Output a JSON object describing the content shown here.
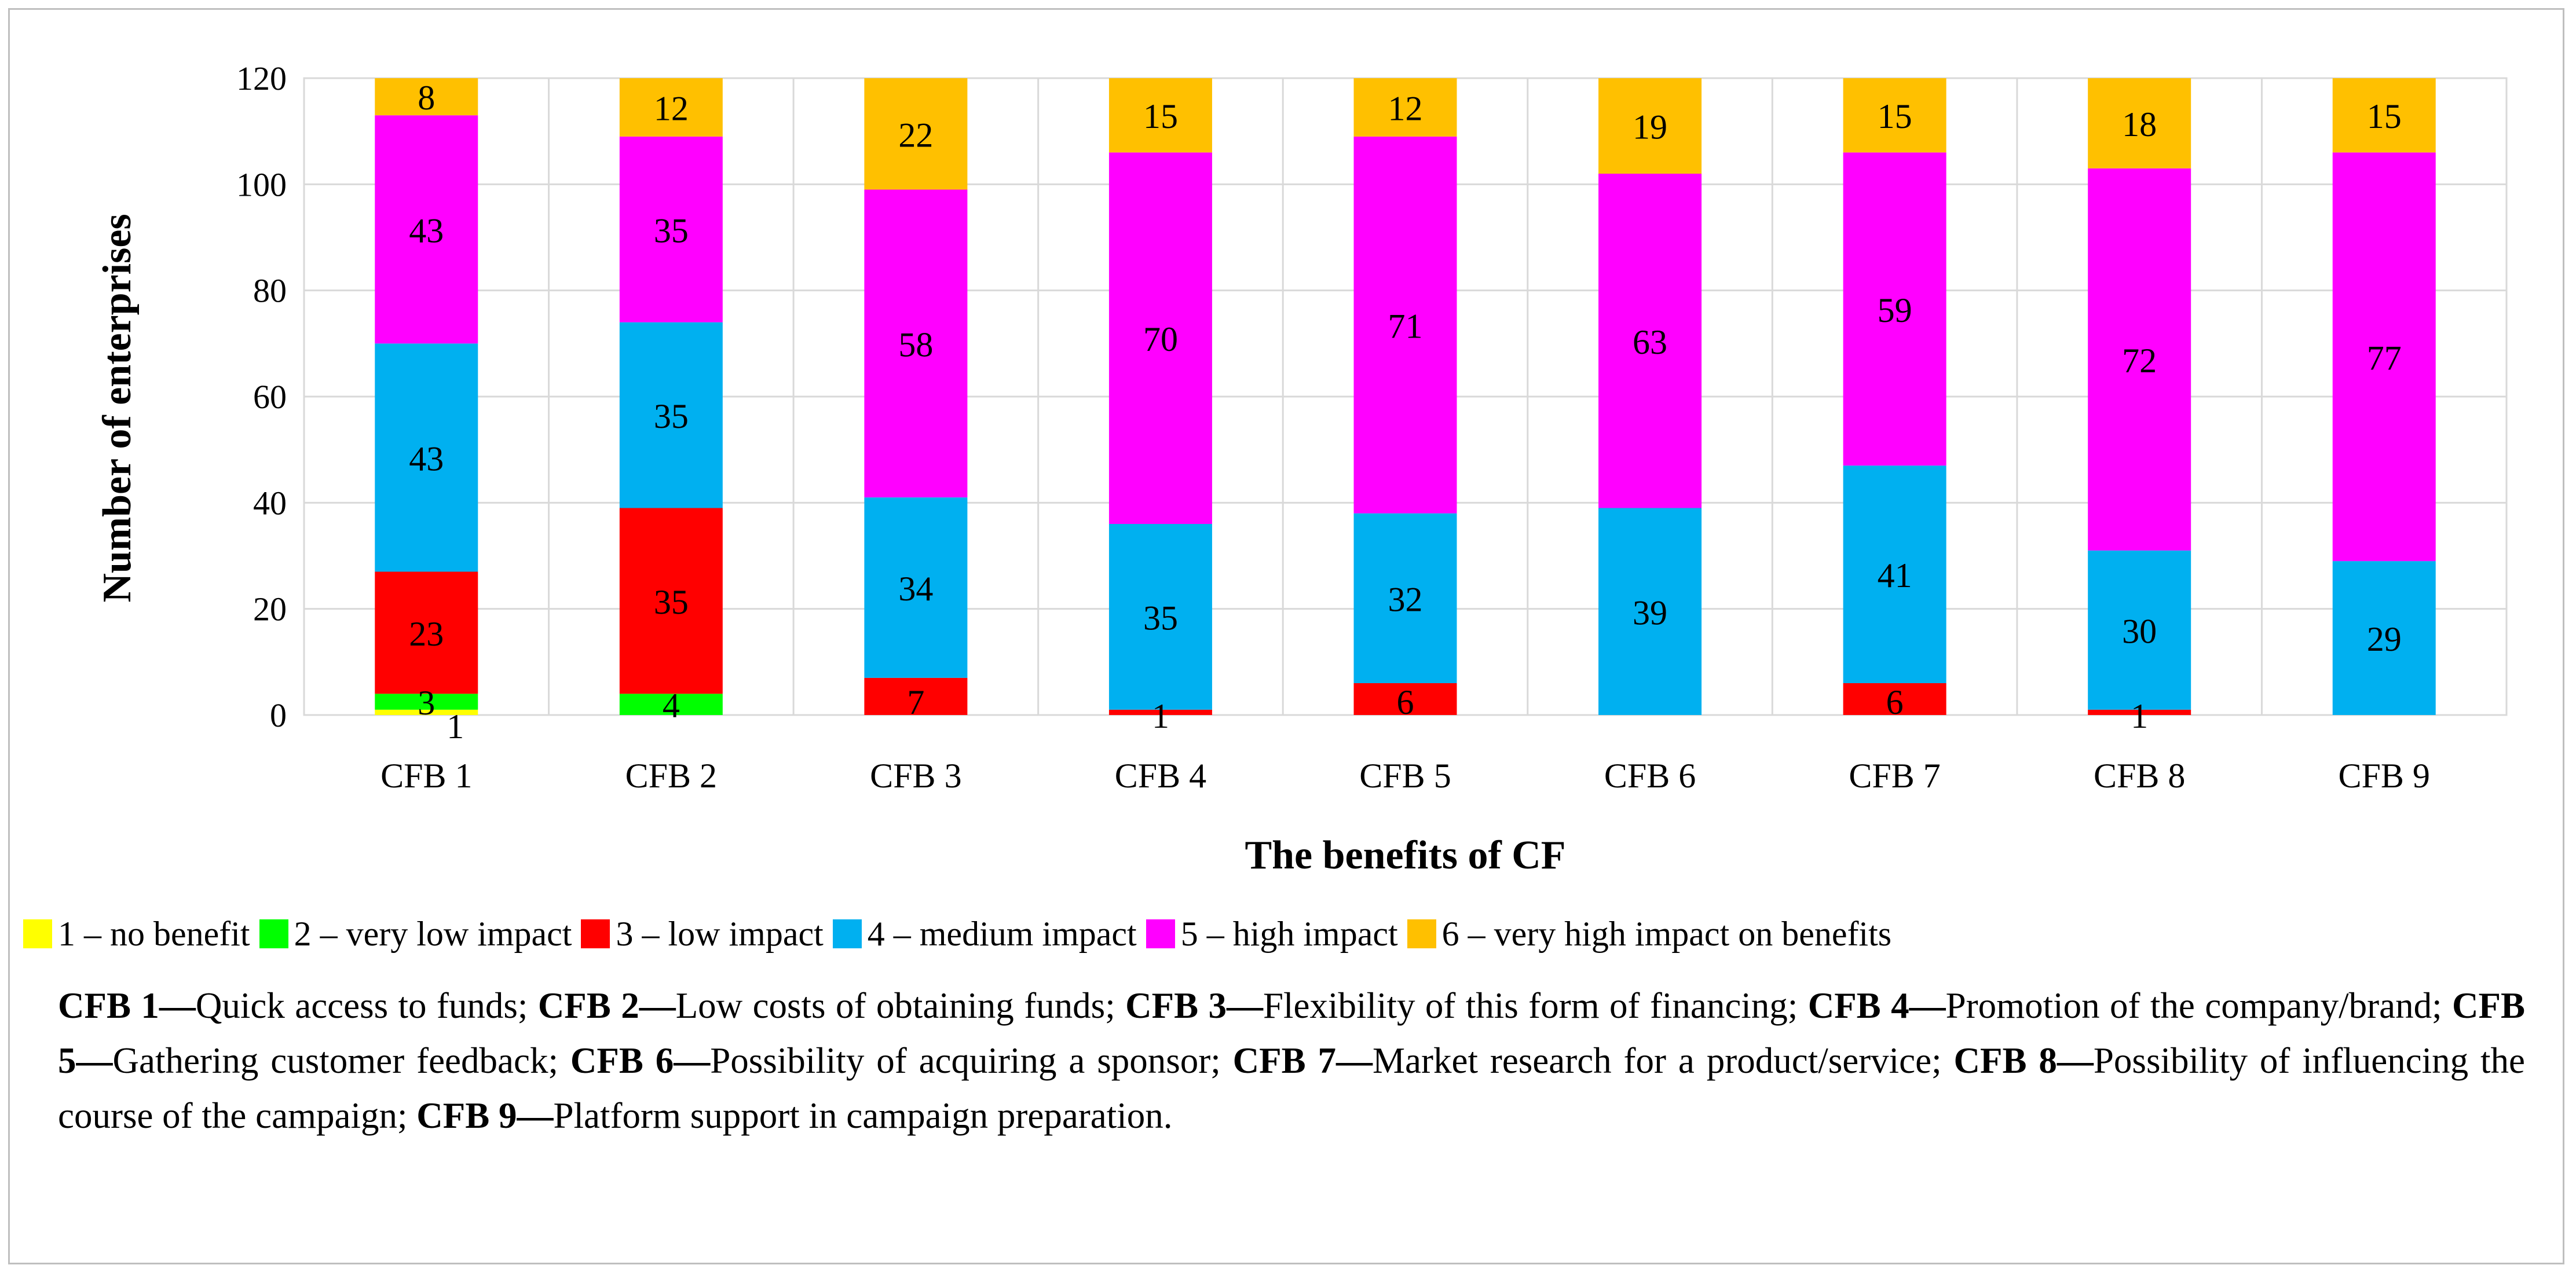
{
  "chart_data": {
    "type": "bar",
    "stacked": true,
    "title": "",
    "xlabel": "The benefits of CF",
    "ylabel": "Number of enterprises",
    "ylim": [
      0,
      120
    ],
    "yticks": [
      "0",
      "20",
      "40",
      "60",
      "80",
      "100",
      "120"
    ],
    "grid": true,
    "legend_position": "bottom",
    "categories": [
      "CFB 1",
      "CFB 2",
      "CFB 3",
      "CFB 4",
      "CFB 5",
      "CFB 6",
      "CFB 7",
      "CFB 8",
      "CFB 9"
    ],
    "series": [
      {
        "name": "1 – no benefit",
        "color": "#ffff00",
        "values": [
          1,
          0,
          0,
          0,
          0,
          0,
          0,
          0,
          0
        ]
      },
      {
        "name": "2 – very low impact",
        "color": "#00ff00",
        "values": [
          3,
          4,
          0,
          0,
          0,
          0,
          0,
          0,
          0
        ]
      },
      {
        "name": "3 – low impact",
        "color": "#ff0000",
        "values": [
          23,
          35,
          7,
          1,
          6,
          0,
          6,
          1,
          0
        ]
      },
      {
        "name": "4 – medium impact",
        "color": "#00b0f0",
        "values": [
          43,
          35,
          34,
          35,
          32,
          39,
          41,
          30,
          29
        ]
      },
      {
        "name": "5 – high impact",
        "color": "#ff00ff",
        "values": [
          43,
          35,
          58,
          70,
          71,
          63,
          59,
          72,
          77
        ]
      },
      {
        "name": "6 – very high impact on benefits",
        "color": "#ffc000",
        "values": [
          8,
          12,
          22,
          15,
          12,
          19,
          15,
          18,
          15
        ]
      }
    ]
  },
  "footnote": [
    {
      "code": "CFB 1—",
      "text": "Quick access to funds; "
    },
    {
      "code": "CFB 2—",
      "text": "Low costs of obtaining funds; "
    },
    {
      "code": "CFB 3—",
      "text": "Flexibility of this form of financing; "
    },
    {
      "code": "CFB 4—",
      "text": "Promotion of the company/brand; "
    },
    {
      "code": "CFB 5—",
      "text": "Gathering customer feedback; "
    },
    {
      "code": "CFB 6—",
      "text": "Possibility of acquiring a sponsor; "
    },
    {
      "code": "CFB 7—",
      "text": "Market research for a product/service; "
    },
    {
      "code": "CFB 8—",
      "text": "Possibility of influencing the course of the campaign; "
    },
    {
      "code": "CFB 9—",
      "text": "Platform support in campaign preparation."
    }
  ]
}
